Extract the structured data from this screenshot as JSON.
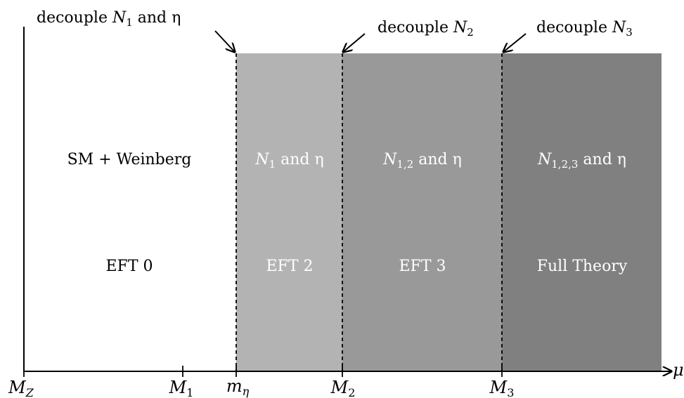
{
  "regions": [
    {
      "label": "SM + Weinberg",
      "theory": "EFT 0",
      "fill": "#ffffff",
      "text_color": "#000000"
    },
    {
      "label_main": "N",
      "label_sub": "1",
      "label_rest": " and η",
      "theory": "EFT 2",
      "fill": "#b3b3b3",
      "text_color": "#ffffff"
    },
    {
      "label_main": "N",
      "label_sub": "1,2",
      "label_rest": " and η",
      "theory": "EFT 3",
      "fill": "#999999",
      "text_color": "#ffffff"
    },
    {
      "label_main": "N",
      "label_sub": "1,2,3",
      "label_rest": " and η",
      "theory": "Full Theory",
      "fill": "#808080",
      "text_color": "#ffffff"
    }
  ],
  "annotations": [
    {
      "prefix": "decouple ",
      "main": "N",
      "sub": "1",
      "suffix": " and η"
    },
    {
      "prefix": "decouple ",
      "main": "N",
      "sub": "2",
      "suffix": ""
    },
    {
      "prefix": "decouple ",
      "main": "N",
      "sub": "3",
      "suffix": ""
    }
  ],
  "axis": {
    "label": "μ",
    "ticks": [
      {
        "main": "M",
        "sub": "Z"
      },
      {
        "main": "M",
        "sub": "1"
      },
      {
        "main": "m",
        "sub": "η"
      },
      {
        "main": "M",
        "sub": "2"
      },
      {
        "main": "M",
        "sub": "3"
      }
    ]
  },
  "colors": {
    "axis": "#000000",
    "white_region": "#ffffff",
    "light_grey": "#b3b3b3",
    "mid_grey": "#999999",
    "dark_grey": "#808080"
  }
}
